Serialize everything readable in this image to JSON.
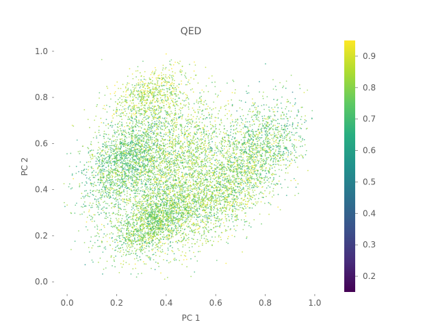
{
  "chart_data": {
    "type": "scatter",
    "title": "QED",
    "xlabel": "PC 1",
    "ylabel": "PC 2",
    "xlim": [
      -0.05,
      1.05
    ],
    "ylim": [
      -0.05,
      1.05
    ],
    "x_ticks": [
      "0.0",
      "0.2",
      "0.4",
      "0.6",
      "0.8",
      "1.0"
    ],
    "y_ticks": [
      "0.0",
      "0.2",
      "0.4",
      "0.6",
      "0.8",
      "1.0"
    ],
    "grid": false,
    "colormap": "viridis",
    "colorbar": {
      "range": [
        0.15,
        0.95
      ],
      "ticks": [
        "0.2",
        "0.3",
        "0.4",
        "0.5",
        "0.6",
        "0.7",
        "0.8",
        "0.9"
      ]
    },
    "clusters": [
      {
        "center": [
          0.24,
          0.52
        ],
        "spread": [
          0.09,
          0.1
        ],
        "tilt": 0.55,
        "weight": 0.23,
        "mean_value": 0.74
      },
      {
        "center": [
          0.36,
          0.27
        ],
        "spread": [
          0.09,
          0.07
        ],
        "tilt": 0.45,
        "weight": 0.22,
        "mean_value": 0.78
      },
      {
        "center": [
          0.66,
          0.42
        ],
        "spread": [
          0.12,
          0.1
        ],
        "tilt": 0.8,
        "weight": 0.22,
        "mean_value": 0.79
      },
      {
        "center": [
          0.47,
          0.55
        ],
        "spread": [
          0.1,
          0.12
        ],
        "tilt": 0.35,
        "weight": 0.18,
        "mean_value": 0.8
      },
      {
        "center": [
          0.33,
          0.8
        ],
        "spread": [
          0.08,
          0.06
        ],
        "tilt": 0.3,
        "weight": 0.08,
        "mean_value": 0.84
      },
      {
        "center": [
          0.8,
          0.62
        ],
        "spread": [
          0.08,
          0.1
        ],
        "tilt": 0.2,
        "weight": 0.07,
        "mean_value": 0.72
      }
    ],
    "point_count": 9000,
    "colors": {
      "text": "#5a5a5a",
      "background": "#ffffff"
    }
  }
}
